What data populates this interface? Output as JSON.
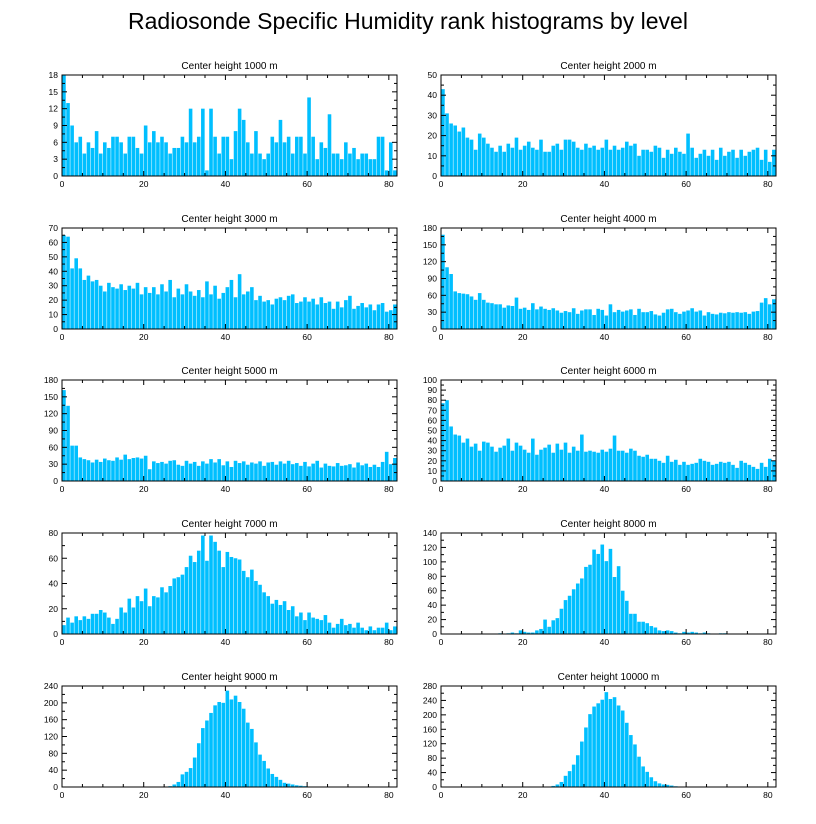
{
  "title": "Radiosonde Specific Humidity rank histograms by level",
  "colors": {
    "bar": "#00bfff",
    "bar_edge": "#ffffff",
    "axis": "#000000"
  },
  "chart_data": [
    {
      "type": "bar",
      "title": "Center height 1000 m",
      "xlim": [
        0,
        82
      ],
      "ylim": [
        0,
        18
      ],
      "xticks": [
        0,
        20,
        40,
        60,
        80
      ],
      "yticks": [
        0,
        3,
        6,
        9,
        12,
        15,
        18
      ],
      "values": [
        18,
        13,
        9,
        6,
        7,
        4,
        6,
        5,
        8,
        4,
        6,
        5,
        7,
        7,
        6,
        4,
        7,
        7,
        5,
        4,
        9,
        6,
        8,
        6,
        7,
        6,
        4,
        5,
        5,
        7,
        6,
        12,
        6,
        7,
        12,
        1,
        12,
        7,
        4,
        7,
        7,
        3,
        8,
        12,
        10,
        6,
        4,
        8,
        4,
        3,
        4,
        7,
        6,
        10,
        6,
        7,
        4,
        7,
        7,
        4,
        14,
        7,
        3,
        6,
        5,
        11,
        4,
        4,
        3,
        6,
        4,
        5,
        3,
        4,
        4,
        3,
        3,
        7,
        7,
        1,
        6,
        1
      ]
    },
    {
      "type": "bar",
      "title": "Center height 2000 m",
      "xlim": [
        0,
        82
      ],
      "ylim": [
        0,
        50
      ],
      "xticks": [
        0,
        20,
        40,
        60,
        80
      ],
      "yticks": [
        0,
        10,
        20,
        30,
        40,
        50
      ],
      "values": [
        43,
        31,
        26,
        25,
        22,
        24,
        19,
        18,
        13,
        21,
        19,
        16,
        14,
        12,
        15,
        12,
        16,
        14,
        19,
        13,
        15,
        17,
        14,
        13,
        18,
        12,
        12,
        15,
        16,
        13,
        18,
        18,
        17,
        14,
        13,
        16,
        14,
        15,
        13,
        14,
        18,
        13,
        15,
        13,
        14,
        17,
        15,
        16,
        10,
        13,
        13,
        12,
        15,
        14,
        9,
        13,
        11,
        14,
        12,
        11,
        21,
        14,
        9,
        11,
        13,
        10,
        13,
        8,
        14,
        10,
        12,
        13,
        9,
        13,
        10,
        12,
        13,
        14,
        8,
        13,
        7,
        13
      ]
    },
    {
      "type": "bar",
      "title": "Center height 3000 m",
      "xlim": [
        0,
        82
      ],
      "ylim": [
        0,
        70
      ],
      "xticks": [
        0,
        20,
        40,
        60,
        80
      ],
      "yticks": [
        0,
        10,
        20,
        30,
        40,
        50,
        60,
        70
      ],
      "values": [
        65,
        64,
        42,
        49,
        42,
        34,
        37,
        33,
        34,
        30,
        26,
        32,
        29,
        28,
        31,
        27,
        30,
        28,
        32,
        24,
        29,
        25,
        29,
        24,
        31,
        26,
        34,
        22,
        28,
        24,
        31,
        26,
        23,
        27,
        22,
        33,
        24,
        30,
        21,
        25,
        29,
        34,
        22,
        38,
        24,
        26,
        29,
        20,
        23,
        19,
        20,
        17,
        21,
        22,
        20,
        23,
        24,
        18,
        19,
        22,
        19,
        21,
        17,
        22,
        18,
        19,
        14,
        19,
        15,
        20,
        23,
        14,
        16,
        18,
        15,
        17,
        13,
        17,
        18,
        12,
        13,
        17
      ]
    },
    {
      "type": "bar",
      "title": "Center height 4000 m",
      "xlim": [
        0,
        82
      ],
      "ylim": [
        0,
        180
      ],
      "xticks": [
        0,
        20,
        40,
        60,
        80
      ],
      "yticks": [
        0,
        30,
        60,
        90,
        120,
        150,
        180
      ],
      "values": [
        168,
        110,
        98,
        67,
        64,
        63,
        62,
        58,
        52,
        64,
        52,
        47,
        46,
        44,
        44,
        38,
        42,
        41,
        56,
        36,
        38,
        34,
        46,
        35,
        40,
        36,
        34,
        37,
        33,
        29,
        32,
        30,
        37,
        27,
        33,
        35,
        35,
        25,
        36,
        34,
        24,
        44,
        30,
        34,
        31,
        33,
        35,
        25,
        36,
        30,
        30,
        32,
        26,
        24,
        29,
        35,
        36,
        30,
        27,
        31,
        33,
        37,
        31,
        33,
        24,
        30,
        27,
        26,
        29,
        28,
        30,
        29,
        30,
        29,
        30,
        27,
        31,
        32,
        47,
        55,
        44,
        53
      ]
    },
    {
      "type": "bar",
      "title": "Center height 5000 m",
      "xlim": [
        0,
        82
      ],
      "ylim": [
        0,
        180
      ],
      "xticks": [
        0,
        20,
        40,
        60,
        80
      ],
      "yticks": [
        0,
        30,
        60,
        90,
        120,
        150,
        180
      ],
      "values": [
        162,
        134,
        63,
        63,
        42,
        39,
        37,
        33,
        38,
        34,
        40,
        37,
        36,
        42,
        38,
        47,
        39,
        41,
        42,
        40,
        45,
        21,
        35,
        32,
        34,
        31,
        36,
        37,
        29,
        27,
        36,
        31,
        34,
        27,
        35,
        31,
        39,
        33,
        39,
        28,
        35,
        25,
        36,
        32,
        35,
        29,
        33,
        31,
        35,
        27,
        33,
        34,
        29,
        35,
        31,
        36,
        30,
        32,
        27,
        34,
        26,
        31,
        36,
        24,
        31,
        27,
        26,
        32,
        27,
        28,
        30,
        24,
        33,
        28,
        31,
        25,
        29,
        25,
        34,
        52,
        30,
        41
      ]
    },
    {
      "type": "bar",
      "title": "Center height 6000 m",
      "xlim": [
        0,
        82
      ],
      "ylim": [
        0,
        100
      ],
      "xticks": [
        0,
        20,
        40,
        60,
        80
      ],
      "yticks": [
        0,
        10,
        20,
        30,
        40,
        50,
        60,
        70,
        80,
        90,
        100
      ],
      "values": [
        77,
        80,
        54,
        46,
        45,
        38,
        42,
        34,
        37,
        30,
        39,
        38,
        34,
        29,
        33,
        35,
        42,
        30,
        38,
        35,
        31,
        28,
        42,
        26,
        31,
        33,
        36,
        28,
        37,
        31,
        38,
        28,
        34,
        30,
        46,
        29,
        30,
        29,
        28,
        31,
        29,
        32,
        45,
        30,
        30,
        28,
        32,
        30,
        25,
        24,
        26,
        22,
        22,
        20,
        18,
        25,
        19,
        21,
        16,
        19,
        16,
        17,
        18,
        22,
        20,
        19,
        16,
        17,
        19,
        18,
        19,
        16,
        13,
        20,
        18,
        16,
        14,
        12,
        18,
        14,
        22,
        20
      ]
    },
    {
      "type": "bar",
      "title": "Center height 7000 m",
      "xlim": [
        0,
        82
      ],
      "ylim": [
        0,
        80
      ],
      "xticks": [
        0,
        20,
        40,
        60,
        80
      ],
      "yticks": [
        0,
        20,
        40,
        60,
        80
      ],
      "values": [
        7,
        13,
        9,
        14,
        11,
        14,
        12,
        16,
        16,
        19,
        17,
        13,
        8,
        12,
        21,
        17,
        28,
        21,
        30,
        26,
        36,
        22,
        30,
        29,
        37,
        33,
        38,
        44,
        45,
        47,
        53,
        62,
        57,
        66,
        78,
        58,
        78,
        73,
        66,
        53,
        65,
        61,
        60,
        59,
        50,
        45,
        51,
        42,
        39,
        33,
        30,
        24,
        27,
        23,
        26,
        19,
        22,
        14,
        17,
        11,
        17,
        13,
        12,
        11,
        15,
        9,
        5,
        8,
        12,
        7,
        8,
        5,
        9,
        5,
        3,
        6,
        3,
        5,
        5,
        9,
        3,
        6
      ]
    },
    {
      "type": "bar",
      "title": "Center height 8000 m",
      "xlim": [
        0,
        82
      ],
      "ylim": [
        0,
        140
      ],
      "xticks": [
        0,
        20,
        40,
        60,
        80
      ],
      "yticks": [
        0,
        20,
        40,
        60,
        80,
        100,
        120,
        140
      ],
      "values": [
        0,
        0,
        0,
        0,
        0,
        0,
        0,
        0,
        0,
        0,
        0,
        0,
        0,
        0,
        1,
        0,
        1,
        2,
        1,
        5,
        3,
        2,
        2,
        5,
        7,
        20,
        10,
        19,
        22,
        35,
        47,
        53,
        62,
        70,
        77,
        93,
        96,
        117,
        111,
        124,
        101,
        118,
        79,
        94,
        60,
        46,
        28,
        28,
        17,
        17,
        15,
        11,
        9,
        5,
        4,
        5,
        4,
        2,
        1,
        3,
        2,
        3,
        2,
        1,
        2,
        1,
        0,
        0,
        1,
        1,
        0,
        0,
        0,
        0,
        0,
        0,
        0,
        0,
        0,
        0,
        0,
        0
      ]
    },
    {
      "type": "bar",
      "title": "Center height 9000 m",
      "xlim": [
        0,
        82
      ],
      "ylim": [
        0,
        240
      ],
      "xticks": [
        0,
        20,
        40,
        60,
        80
      ],
      "yticks": [
        0,
        40,
        80,
        120,
        160,
        200,
        240
      ],
      "values": [
        0,
        0,
        0,
        0,
        0,
        0,
        0,
        0,
        0,
        0,
        0,
        0,
        0,
        0,
        0,
        0,
        0,
        0,
        0,
        0,
        0,
        0,
        0,
        0,
        0,
        1,
        2,
        6,
        12,
        30,
        36,
        45,
        70,
        104,
        140,
        158,
        176,
        194,
        202,
        200,
        229,
        208,
        217,
        202,
        186,
        153,
        138,
        106,
        77,
        62,
        44,
        31,
        24,
        17,
        10,
        8,
        6,
        4,
        3,
        2,
        1,
        1,
        0,
        0,
        0,
        0,
        0,
        0,
        0,
        0,
        0,
        0,
        0,
        0,
        0,
        0,
        0,
        0,
        0,
        0,
        0,
        0
      ]
    },
    {
      "type": "bar",
      "title": "Center height 10000 m",
      "xlim": [
        0,
        82
      ],
      "ylim": [
        0,
        280
      ],
      "xticks": [
        0,
        20,
        40,
        60,
        80
      ],
      "yticks": [
        0,
        40,
        80,
        120,
        160,
        200,
        240,
        280
      ],
      "values": [
        0,
        0,
        0,
        0,
        0,
        0,
        0,
        0,
        0,
        0,
        0,
        0,
        0,
        0,
        0,
        0,
        0,
        0,
        0,
        0,
        0,
        0,
        0,
        0,
        0,
        0,
        0,
        3,
        7,
        14,
        31,
        44,
        62,
        88,
        126,
        165,
        202,
        223,
        232,
        242,
        263,
        244,
        249,
        226,
        212,
        178,
        144,
        118,
        84,
        57,
        42,
        27,
        16,
        10,
        7,
        6,
        4,
        2,
        1,
        1,
        0,
        0,
        0,
        0,
        0,
        0,
        0,
        0,
        0,
        0,
        0,
        0,
        0,
        0,
        0,
        0,
        0,
        0,
        0,
        0,
        0,
        0
      ]
    }
  ]
}
